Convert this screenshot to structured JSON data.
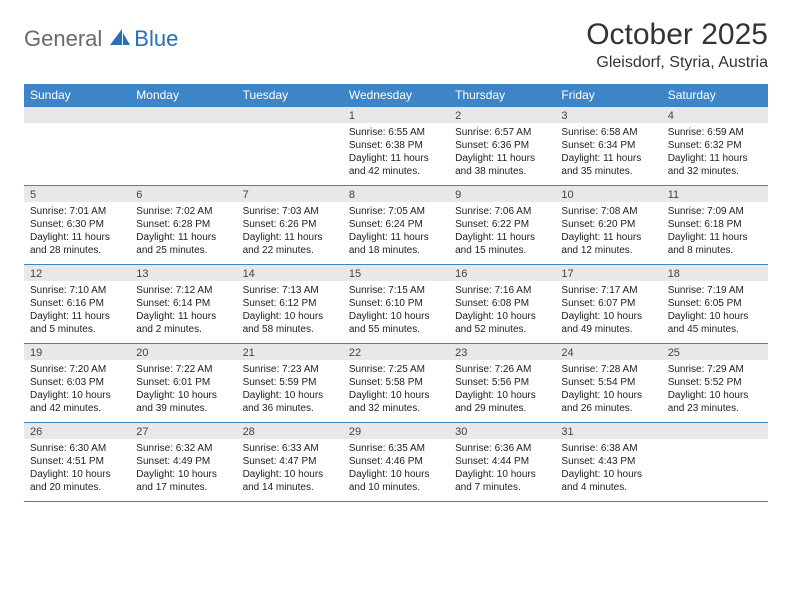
{
  "brand": {
    "part1": "General",
    "part2": "Blue"
  },
  "title": "October 2025",
  "location": "Gleisdorf, Styria, Austria",
  "header_bg": "#3d85c6",
  "daynum_bg": "#e8e8e8",
  "border_color": "#3d85c6",
  "weekdays": [
    "Sunday",
    "Monday",
    "Tuesday",
    "Wednesday",
    "Thursday",
    "Friday",
    "Saturday"
  ],
  "weeks": [
    [
      {
        "day": "",
        "sunrise": "",
        "sunset": "",
        "daylight": ""
      },
      {
        "day": "",
        "sunrise": "",
        "sunset": "",
        "daylight": ""
      },
      {
        "day": "",
        "sunrise": "",
        "sunset": "",
        "daylight": ""
      },
      {
        "day": "1",
        "sunrise": "Sunrise: 6:55 AM",
        "sunset": "Sunset: 6:38 PM",
        "daylight": "Daylight: 11 hours and 42 minutes."
      },
      {
        "day": "2",
        "sunrise": "Sunrise: 6:57 AM",
        "sunset": "Sunset: 6:36 PM",
        "daylight": "Daylight: 11 hours and 38 minutes."
      },
      {
        "day": "3",
        "sunrise": "Sunrise: 6:58 AM",
        "sunset": "Sunset: 6:34 PM",
        "daylight": "Daylight: 11 hours and 35 minutes."
      },
      {
        "day": "4",
        "sunrise": "Sunrise: 6:59 AM",
        "sunset": "Sunset: 6:32 PM",
        "daylight": "Daylight: 11 hours and 32 minutes."
      }
    ],
    [
      {
        "day": "5",
        "sunrise": "Sunrise: 7:01 AM",
        "sunset": "Sunset: 6:30 PM",
        "daylight": "Daylight: 11 hours and 28 minutes."
      },
      {
        "day": "6",
        "sunrise": "Sunrise: 7:02 AM",
        "sunset": "Sunset: 6:28 PM",
        "daylight": "Daylight: 11 hours and 25 minutes."
      },
      {
        "day": "7",
        "sunrise": "Sunrise: 7:03 AM",
        "sunset": "Sunset: 6:26 PM",
        "daylight": "Daylight: 11 hours and 22 minutes."
      },
      {
        "day": "8",
        "sunrise": "Sunrise: 7:05 AM",
        "sunset": "Sunset: 6:24 PM",
        "daylight": "Daylight: 11 hours and 18 minutes."
      },
      {
        "day": "9",
        "sunrise": "Sunrise: 7:06 AM",
        "sunset": "Sunset: 6:22 PM",
        "daylight": "Daylight: 11 hours and 15 minutes."
      },
      {
        "day": "10",
        "sunrise": "Sunrise: 7:08 AM",
        "sunset": "Sunset: 6:20 PM",
        "daylight": "Daylight: 11 hours and 12 minutes."
      },
      {
        "day": "11",
        "sunrise": "Sunrise: 7:09 AM",
        "sunset": "Sunset: 6:18 PM",
        "daylight": "Daylight: 11 hours and 8 minutes."
      }
    ],
    [
      {
        "day": "12",
        "sunrise": "Sunrise: 7:10 AM",
        "sunset": "Sunset: 6:16 PM",
        "daylight": "Daylight: 11 hours and 5 minutes."
      },
      {
        "day": "13",
        "sunrise": "Sunrise: 7:12 AM",
        "sunset": "Sunset: 6:14 PM",
        "daylight": "Daylight: 11 hours and 2 minutes."
      },
      {
        "day": "14",
        "sunrise": "Sunrise: 7:13 AM",
        "sunset": "Sunset: 6:12 PM",
        "daylight": "Daylight: 10 hours and 58 minutes."
      },
      {
        "day": "15",
        "sunrise": "Sunrise: 7:15 AM",
        "sunset": "Sunset: 6:10 PM",
        "daylight": "Daylight: 10 hours and 55 minutes."
      },
      {
        "day": "16",
        "sunrise": "Sunrise: 7:16 AM",
        "sunset": "Sunset: 6:08 PM",
        "daylight": "Daylight: 10 hours and 52 minutes."
      },
      {
        "day": "17",
        "sunrise": "Sunrise: 7:17 AM",
        "sunset": "Sunset: 6:07 PM",
        "daylight": "Daylight: 10 hours and 49 minutes."
      },
      {
        "day": "18",
        "sunrise": "Sunrise: 7:19 AM",
        "sunset": "Sunset: 6:05 PM",
        "daylight": "Daylight: 10 hours and 45 minutes."
      }
    ],
    [
      {
        "day": "19",
        "sunrise": "Sunrise: 7:20 AM",
        "sunset": "Sunset: 6:03 PM",
        "daylight": "Daylight: 10 hours and 42 minutes."
      },
      {
        "day": "20",
        "sunrise": "Sunrise: 7:22 AM",
        "sunset": "Sunset: 6:01 PM",
        "daylight": "Daylight: 10 hours and 39 minutes."
      },
      {
        "day": "21",
        "sunrise": "Sunrise: 7:23 AM",
        "sunset": "Sunset: 5:59 PM",
        "daylight": "Daylight: 10 hours and 36 minutes."
      },
      {
        "day": "22",
        "sunrise": "Sunrise: 7:25 AM",
        "sunset": "Sunset: 5:58 PM",
        "daylight": "Daylight: 10 hours and 32 minutes."
      },
      {
        "day": "23",
        "sunrise": "Sunrise: 7:26 AM",
        "sunset": "Sunset: 5:56 PM",
        "daylight": "Daylight: 10 hours and 29 minutes."
      },
      {
        "day": "24",
        "sunrise": "Sunrise: 7:28 AM",
        "sunset": "Sunset: 5:54 PM",
        "daylight": "Daylight: 10 hours and 26 minutes."
      },
      {
        "day": "25",
        "sunrise": "Sunrise: 7:29 AM",
        "sunset": "Sunset: 5:52 PM",
        "daylight": "Daylight: 10 hours and 23 minutes."
      }
    ],
    [
      {
        "day": "26",
        "sunrise": "Sunrise: 6:30 AM",
        "sunset": "Sunset: 4:51 PM",
        "daylight": "Daylight: 10 hours and 20 minutes."
      },
      {
        "day": "27",
        "sunrise": "Sunrise: 6:32 AM",
        "sunset": "Sunset: 4:49 PM",
        "daylight": "Daylight: 10 hours and 17 minutes."
      },
      {
        "day": "28",
        "sunrise": "Sunrise: 6:33 AM",
        "sunset": "Sunset: 4:47 PM",
        "daylight": "Daylight: 10 hours and 14 minutes."
      },
      {
        "day": "29",
        "sunrise": "Sunrise: 6:35 AM",
        "sunset": "Sunset: 4:46 PM",
        "daylight": "Daylight: 10 hours and 10 minutes."
      },
      {
        "day": "30",
        "sunrise": "Sunrise: 6:36 AM",
        "sunset": "Sunset: 4:44 PM",
        "daylight": "Daylight: 10 hours and 7 minutes."
      },
      {
        "day": "31",
        "sunrise": "Sunrise: 6:38 AM",
        "sunset": "Sunset: 4:43 PM",
        "daylight": "Daylight: 10 hours and 4 minutes."
      },
      {
        "day": "",
        "sunrise": "",
        "sunset": "",
        "daylight": ""
      }
    ]
  ]
}
